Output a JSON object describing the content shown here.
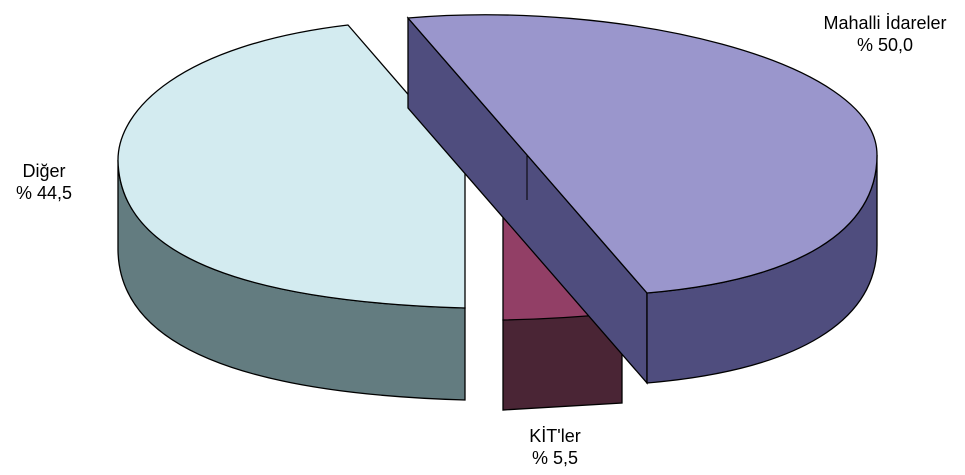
{
  "chart_data": {
    "type": "pie",
    "three_d": true,
    "exploded": true,
    "slices": [
      {
        "label": "Mahalli İdareler",
        "value_text": "% 50,0",
        "value": 50.0,
        "top_color": "#9a96cc",
        "side_color": "#4f4d7e"
      },
      {
        "label": "KİT'ler",
        "value_text": "% 5,5",
        "value": 5.5,
        "top_color": "#923f66",
        "side_color": "#4a2535"
      },
      {
        "label": "Diğer",
        "value_text": "% 44,5",
        "value": 44.5,
        "top_color": "#d3ebf0",
        "side_color": "#637c80"
      }
    ]
  }
}
